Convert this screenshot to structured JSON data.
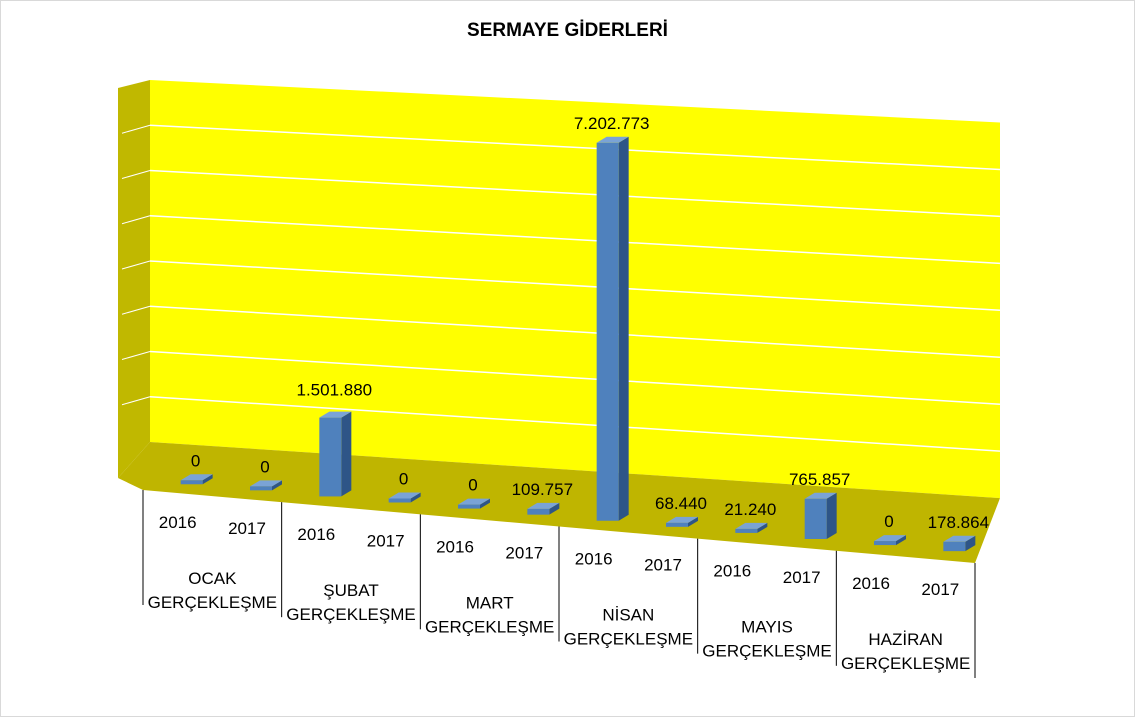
{
  "chart_data": {
    "type": "bar",
    "title": "SERMAYE GİDERLERİ",
    "categories": [
      {
        "year": "2016",
        "group": "OCAK GERÇEKLEŞME"
      },
      {
        "year": "2017",
        "group": "OCAK GERÇEKLEŞME"
      },
      {
        "year": "2016",
        "group": "ŞUBAT GERÇEKLEŞME"
      },
      {
        "year": "2017",
        "group": "ŞUBAT GERÇEKLEŞME"
      },
      {
        "year": "2016",
        "group": "MART GERÇEKLEŞME"
      },
      {
        "year": "2017",
        "group": "MART GERÇEKLEŞME"
      },
      {
        "year": "2016",
        "group": "NİSAN GERÇEKLEŞME"
      },
      {
        "year": "2017",
        "group": "NİSAN GERÇEKLEŞME"
      },
      {
        "year": "2016",
        "group": "MAYIS GERÇEKLEŞME"
      },
      {
        "year": "2017",
        "group": "MAYIS GERÇEKLEŞME"
      },
      {
        "year": "2016",
        "group": "HAZİRAN GERÇEKLEŞME"
      },
      {
        "year": "2017",
        "group": "HAZİRAN GERÇEKLEŞME"
      }
    ],
    "groups": [
      {
        "line1": "OCAK",
        "line2": "GERÇEKLEŞME"
      },
      {
        "line1": "ŞUBAT",
        "line2": "GERÇEKLEŞME"
      },
      {
        "line1": "MART",
        "line2": "GERÇEKLEŞME"
      },
      {
        "line1": "NİSAN",
        "line2": "GERÇEKLEŞME"
      },
      {
        "line1": "MAYIS",
        "line2": "GERÇEKLEŞME"
      },
      {
        "line1": "HAZİRAN",
        "line2": "GERÇEKLEŞME"
      }
    ],
    "values": [
      0,
      0,
      1501880,
      0,
      0,
      109757,
      7202773,
      68440,
      21240,
      765857,
      0,
      178864
    ],
    "value_labels": [
      "0",
      "0",
      "1.501.880",
      "0",
      "0",
      "109.757",
      "7.202.773",
      "68.440",
      "21.240",
      "765.857",
      "0",
      "178.864"
    ],
    "ylim": [
      0,
      8000000
    ],
    "grid": true,
    "colors": {
      "bar_front": "#4f81bd",
      "bar_side": "#2e5587",
      "bar_top": "#7aa3d6",
      "back_wall": "#ffff00",
      "side_wall": "#c0b800",
      "floor": "#bfb500",
      "gridline": "#ffffff"
    }
  }
}
